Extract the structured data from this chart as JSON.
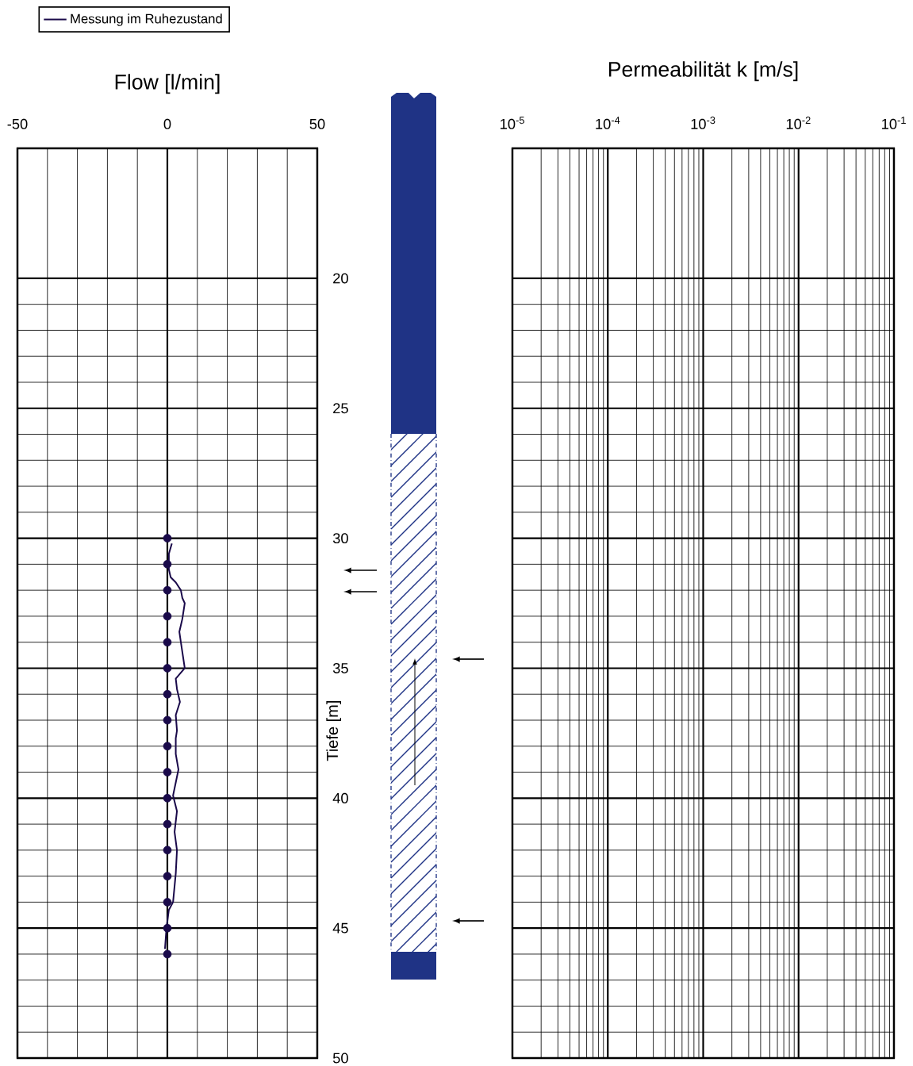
{
  "chart_data": [
    {
      "type": "line",
      "title": "Flow [l/min]",
      "ylabel": "Tiefe [m]",
      "xlim": [
        -50,
        50
      ],
      "xticks": [
        -50,
        0,
        50
      ],
      "ylim": [
        50,
        15
      ],
      "yticks": [
        20,
        25,
        30,
        35,
        40,
        45,
        50
      ],
      "grid": true,
      "legend": "top left",
      "series": [
        {
          "name": "Messung im Ruhezustand",
          "type": "line",
          "color": "#1a0a4a",
          "marker": "none",
          "line_style": "solid",
          "x": [
            1.5,
            0.5,
            0.5,
            1.1,
            2.8,
            4.5,
            5.0,
            5.8,
            5.0,
            4.0,
            4.5,
            5.8,
            2.8,
            3.2,
            4.2,
            2.8,
            3.2,
            2.8,
            2.8,
            3.7,
            1.9,
            3.2,
            2.4,
            3.2,
            2.8,
            1.9,
            0.5,
            -0.3,
            -0.8
          ],
          "values": [
            30.2,
            30.6,
            31.2,
            31.5,
            31.7,
            32.0,
            32.3,
            32.5,
            33.1,
            33.6,
            34.0,
            35.0,
            35.4,
            35.8,
            36.3,
            36.8,
            37.4,
            37.7,
            38.3,
            38.9,
            39.9,
            40.5,
            41.3,
            42.0,
            42.9,
            44.0,
            44.3,
            45.0,
            45.8
          ]
        },
        {
          "type": "scatter",
          "color": "#1a0a4a",
          "marker": "circle",
          "x": [
            0,
            0,
            0,
            0,
            0,
            0,
            0,
            0,
            0,
            0,
            0,
            0,
            0,
            0,
            0,
            0,
            0
          ],
          "values": [
            30,
            31,
            32,
            33,
            34,
            35,
            36,
            37,
            38,
            39,
            40,
            41,
            42,
            43,
            44,
            45,
            46
          ]
        }
      ]
    },
    {
      "type": "line",
      "title": "Permeabilität  k  [m/s]",
      "log": "x",
      "xlim": [
        1e-05,
        0.1
      ],
      "xticks": [
        {
          "value": 1e-05,
          "label": "10$^{-5}$"
        },
        {
          "value": 0.0001,
          "label": "10$^{-4}$"
        },
        {
          "value": 0.001,
          "label": "10$^{-3}$"
        },
        {
          "value": 0.01,
          "label": "10$^{-2}$"
        },
        {
          "value": 0.1,
          "label": "10$^{-1}$"
        }
      ],
      "ylim": [
        50,
        15
      ],
      "yticks": [
        20,
        25,
        30,
        35,
        40,
        45,
        50
      ],
      "grid": true,
      "tick_labels": "x"
    }
  ]
}
